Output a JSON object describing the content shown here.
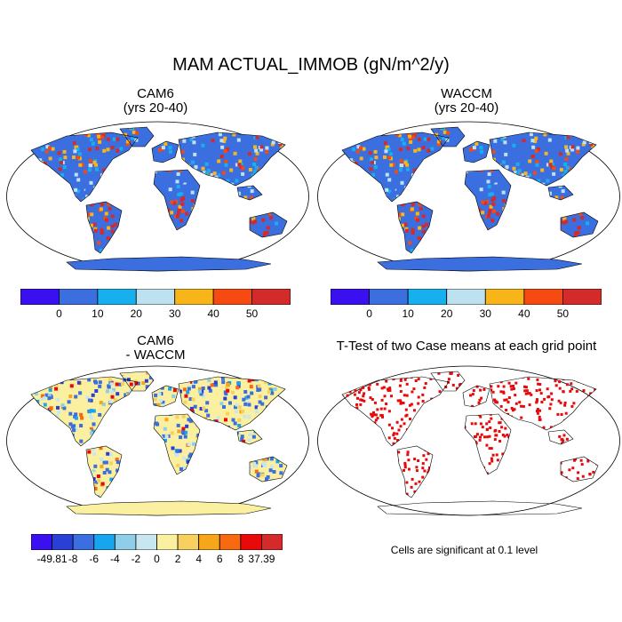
{
  "figure": {
    "title": "MAM ACTUAL_IMMOB (gN/m^2/y)"
  },
  "panels": [
    {
      "id": "cam6",
      "title": "CAM6\n(yrs 20-40)"
    },
    {
      "id": "waccm",
      "title": "WACCM\n(yrs 20-40)"
    },
    {
      "id": "diff",
      "title": "CAM6\n- WACCM"
    },
    {
      "id": "ttest",
      "title": "T-Test of two Case means at each grid point"
    }
  ],
  "colorbar_main": {
    "colors": [
      "#3a10f0",
      "#3b6fe0",
      "#17b0ef",
      "#bde1f0",
      "#f7b51a",
      "#f74a10",
      "#d42a2a"
    ],
    "labels": [
      "0",
      "10",
      "20",
      "30",
      "40",
      "50"
    ]
  },
  "colorbar_diff": {
    "colors": [
      "#3a10f0",
      "#2a3fd6",
      "#3b6fe0",
      "#17a5ef",
      "#8fcde8",
      "#c7e6ef",
      "#fbf0a0",
      "#f7d060",
      "#f7a51a",
      "#f76a10",
      "#e80a0a",
      "#d42a2a"
    ],
    "labels": [
      "-49.81",
      "-8",
      "-6",
      "-4",
      "-2",
      "0",
      "2",
      "4",
      "6",
      "8",
      "37.39"
    ]
  },
  "significance_note": "Cells are significant at 0.1 level",
  "colors": {
    "ocean": "#ffffff",
    "outline": "#000000",
    "significant": "#e80a0a"
  }
}
